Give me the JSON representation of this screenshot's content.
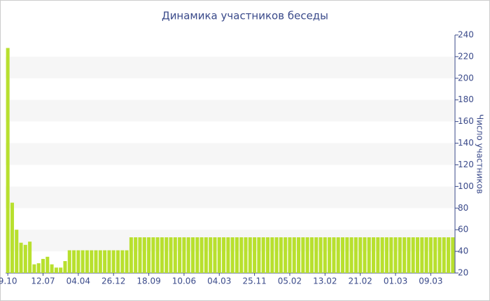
{
  "chart_data": {
    "type": "bar",
    "title": "Динамика участников беседы",
    "y_label": "Число участников",
    "categories": [
      "9.10",
      null,
      null,
      null,
      null,
      null,
      null,
      null,
      "12.07",
      null,
      null,
      null,
      null,
      null,
      null,
      null,
      "04.04",
      null,
      null,
      null,
      null,
      null,
      null,
      null,
      "26.12",
      null,
      null,
      null,
      null,
      null,
      null,
      null,
      "18.09",
      null,
      null,
      null,
      null,
      null,
      null,
      null,
      "10.06",
      null,
      null,
      null,
      null,
      null,
      null,
      null,
      "04.03",
      null,
      null,
      null,
      null,
      null,
      null,
      null,
      "25.11",
      null,
      null,
      null,
      null,
      null,
      null,
      null,
      "05.02",
      null,
      null,
      null,
      null,
      null,
      null,
      null,
      "13.02",
      null,
      null,
      null,
      null,
      null,
      null,
      null,
      "21.02",
      null,
      null,
      null,
      null,
      null,
      null,
      null,
      "01.03",
      null,
      null,
      null,
      null,
      null,
      null,
      null,
      "09.03",
      null,
      null,
      null,
      null,
      null
    ],
    "values": [
      228,
      85,
      60,
      48,
      46,
      49,
      28,
      29,
      33,
      35,
      28,
      25,
      25,
      31,
      41,
      41,
      41,
      41,
      41,
      41,
      41,
      41,
      41,
      41,
      41,
      41,
      41,
      41,
      53,
      53,
      53,
      53,
      53,
      53,
      53,
      53,
      53,
      53,
      53,
      53,
      53,
      53,
      53,
      53,
      53,
      53,
      53,
      53,
      53,
      53,
      53,
      53,
      53,
      53,
      53,
      53,
      53,
      53,
      53,
      53,
      53,
      53,
      53,
      53,
      53,
      53,
      53,
      53,
      53,
      53,
      53,
      53,
      53,
      53,
      53,
      53,
      53,
      53,
      53,
      53,
      53,
      53,
      53,
      53,
      53,
      53,
      53,
      53,
      53,
      53,
      53,
      53,
      53,
      53,
      53,
      53,
      53,
      53,
      53,
      53,
      53,
      53
    ],
    "color": "#b8e02e",
    "ylim": [
      20,
      240
    ],
    "yticks": [
      20,
      40,
      60,
      80,
      100,
      120,
      140,
      160,
      180,
      200,
      220,
      240
    ],
    "y_axis_side": "right",
    "banded_background": true
  }
}
